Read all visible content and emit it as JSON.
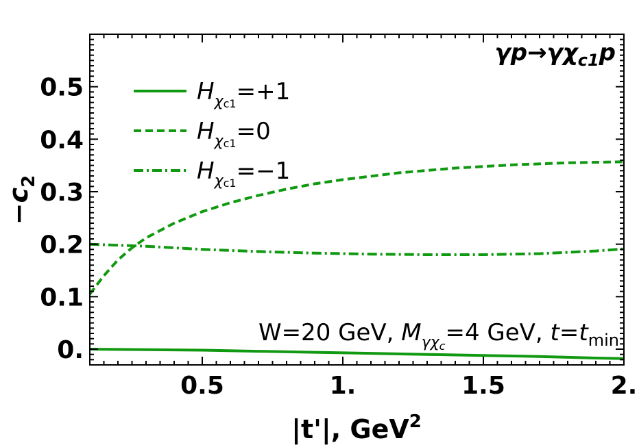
{
  "chart_data": {
    "type": "line",
    "title": "",
    "process_label": {
      "text": "γp→γχ",
      "sub": "c1",
      "tail": "p"
    },
    "xlabel": {
      "text": "|t'|, GeV",
      "sup": "2"
    },
    "ylabel": {
      "text": "−c",
      "sub": "2"
    },
    "xlim": [
      0.1,
      2.0
    ],
    "ylim": [
      -0.03,
      0.6
    ],
    "x_ticks": [
      0.5,
      1.0,
      1.5,
      2.0
    ],
    "x_tick_labels": [
      "0.5",
      "1.",
      "1.5",
      "2."
    ],
    "y_ticks": [
      0.0,
      0.1,
      0.2,
      0.3,
      0.4,
      0.5
    ],
    "y_tick_labels": [
      "0.",
      "0.1",
      "0.2",
      "0.3",
      "0.4",
      "0.5"
    ],
    "annotation": {
      "parts": [
        "W=20 GeV, ",
        "M",
        "γχ",
        "c",
        "=4 GeV, ",
        "t",
        "=",
        "t",
        "min"
      ]
    },
    "legend_placement": "top-left",
    "grid": false,
    "color": "#119911",
    "series": [
      {
        "name": "H_χc1=+1",
        "legend": {
          "base": "H",
          "sub": "χ",
          "subsub": "c1",
          "value": "=+1"
        },
        "style": "solid",
        "x": [
          0.1,
          0.3,
          0.5,
          0.7,
          0.9,
          1.1,
          1.3,
          1.5,
          1.7,
          1.9,
          2.0
        ],
        "y": [
          0.0,
          -0.001,
          -0.002,
          -0.004,
          -0.006,
          -0.008,
          -0.01,
          -0.012,
          -0.014,
          -0.017,
          -0.018
        ]
      },
      {
        "name": "H_χc1=0",
        "legend": {
          "base": "H",
          "sub": "χ",
          "subsub": "c1",
          "value": "=0"
        },
        "style": "dashed",
        "x": [
          0.1,
          0.15,
          0.2,
          0.25,
          0.3,
          0.4,
          0.5,
          0.6,
          0.7,
          0.8,
          0.9,
          1.0,
          1.2,
          1.4,
          1.6,
          1.8,
          2.0
        ],
        "y": [
          0.105,
          0.14,
          0.17,
          0.193,
          0.212,
          0.24,
          0.262,
          0.279,
          0.293,
          0.305,
          0.315,
          0.323,
          0.336,
          0.345,
          0.351,
          0.355,
          0.357
        ]
      },
      {
        "name": "H_χc1=−1",
        "legend": {
          "base": "H",
          "sub": "χ",
          "subsub": "c1",
          "value": "=−1"
        },
        "style": "dashdot",
        "x": [
          0.1,
          0.3,
          0.5,
          0.7,
          0.9,
          1.1,
          1.3,
          1.5,
          1.7,
          1.9,
          2.0
        ],
        "y": [
          0.2,
          0.196,
          0.19,
          0.186,
          0.183,
          0.181,
          0.18,
          0.18,
          0.182,
          0.187,
          0.191
        ]
      }
    ]
  }
}
